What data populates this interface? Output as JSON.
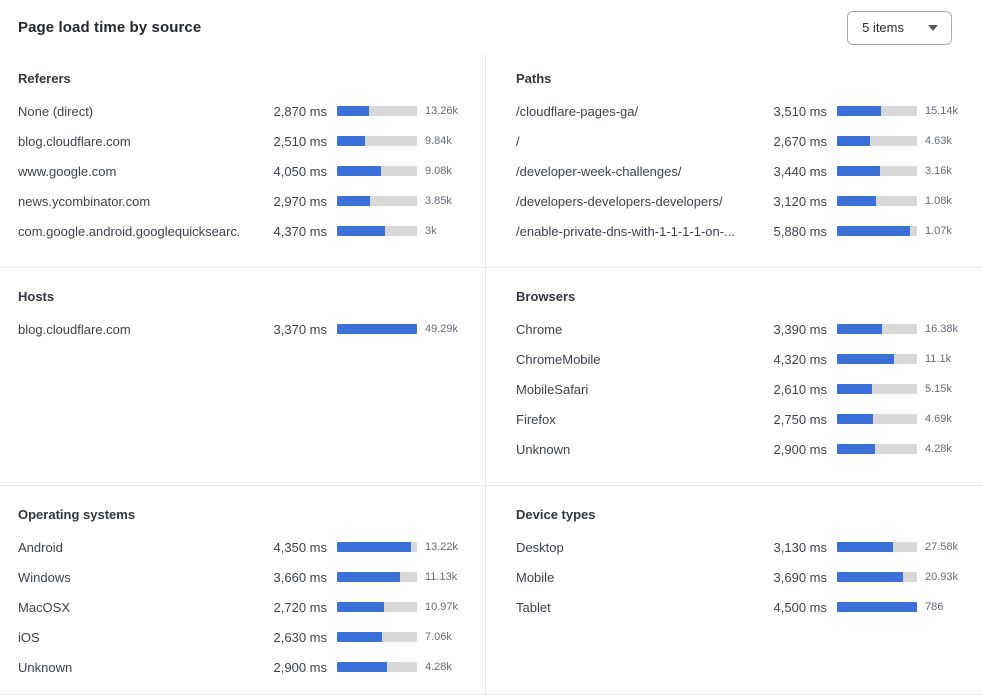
{
  "header": {
    "title": "Page load time by source",
    "items_dropdown": {
      "value": "5 items"
    }
  },
  "colors": {
    "bar_fill": "#3b70d9",
    "bar_track": "#d8d8d8",
    "divider": "#e5e6e8"
  },
  "chart_data": [
    {
      "type": "bar",
      "orientation": "horizontal",
      "title": "Referers",
      "unit": "ms",
      "scale_max_ms": 7280,
      "rows": [
        {
          "label": "None (direct)",
          "ms": 2870,
          "ms_label": "2,870 ms",
          "count": "13.26k"
        },
        {
          "label": "blog.cloudflare.com",
          "ms": 2510,
          "ms_label": "2,510 ms",
          "count": "9.84k"
        },
        {
          "label": "www.google.com",
          "ms": 4050,
          "ms_label": "4,050 ms",
          "count": "9.08k"
        },
        {
          "label": "news.ycombinator.com",
          "ms": 2970,
          "ms_label": "2,970 ms",
          "count": "3.85k"
        },
        {
          "label": "com.google.android.googlequicksearc...",
          "ms": 4370,
          "ms_label": "4,370 ms",
          "count": "3k"
        }
      ]
    },
    {
      "type": "bar",
      "orientation": "horizontal",
      "title": "Paths",
      "unit": "ms",
      "scale_max_ms": 6450,
      "rows": [
        {
          "label": "/cloudflare-pages-ga/",
          "ms": 3510,
          "ms_label": "3,510 ms",
          "count": "15.14k"
        },
        {
          "label": "/",
          "ms": 2670,
          "ms_label": "2,670 ms",
          "count": "4.63k"
        },
        {
          "label": "/developer-week-challenges/",
          "ms": 3440,
          "ms_label": "3,440 ms",
          "count": "3.16k"
        },
        {
          "label": "/developers-developers-developers/",
          "ms": 3120,
          "ms_label": "3,120 ms",
          "count": "1.08k"
        },
        {
          "label": "/enable-private-dns-with-1-1-1-1-on-...",
          "ms": 5880,
          "ms_label": "5,880 ms",
          "count": "1.07k"
        }
      ]
    },
    {
      "type": "bar",
      "orientation": "horizontal",
      "title": "Hosts",
      "unit": "ms",
      "scale_max_ms": 3370,
      "rows": [
        {
          "label": "blog.cloudflare.com",
          "ms": 3370,
          "ms_label": "3,370 ms",
          "count": "49.29k"
        }
      ]
    },
    {
      "type": "bar",
      "orientation": "horizontal",
      "title": "Browsers",
      "unit": "ms",
      "scale_max_ms": 6040,
      "rows": [
        {
          "label": "Chrome",
          "ms": 3390,
          "ms_label": "3,390 ms",
          "count": "16.38k"
        },
        {
          "label": "ChromeMobile",
          "ms": 4320,
          "ms_label": "4,320 ms",
          "count": "11.1k"
        },
        {
          "label": "MobileSafari",
          "ms": 2610,
          "ms_label": "2,610 ms",
          "count": "5.15k"
        },
        {
          "label": "Firefox",
          "ms": 2750,
          "ms_label": "2,750 ms",
          "count": "4.69k"
        },
        {
          "label": "Unknown",
          "ms": 2900,
          "ms_label": "2,900 ms",
          "count": "4.28k"
        }
      ]
    },
    {
      "type": "bar",
      "orientation": "horizontal",
      "title": "Operating systems",
      "unit": "ms",
      "scale_max_ms": 4675,
      "rows": [
        {
          "label": "Android",
          "ms": 4350,
          "ms_label": "4,350 ms",
          "count": "13.22k"
        },
        {
          "label": "Windows",
          "ms": 3660,
          "ms_label": "3,660 ms",
          "count": "11.13k"
        },
        {
          "label": "MacOSX",
          "ms": 2720,
          "ms_label": "2,720 ms",
          "count": "10.97k"
        },
        {
          "label": "iOS",
          "ms": 2630,
          "ms_label": "2,630 ms",
          "count": "7.06k"
        },
        {
          "label": "Unknown",
          "ms": 2900,
          "ms_label": "2,900 ms",
          "count": "4.28k"
        }
      ]
    },
    {
      "type": "bar",
      "orientation": "horizontal",
      "title": "Device types",
      "unit": "ms",
      "scale_max_ms": 4500,
      "rows": [
        {
          "label": "Desktop",
          "ms": 3130,
          "ms_label": "3,130 ms",
          "count": "27.58k"
        },
        {
          "label": "Mobile",
          "ms": 3690,
          "ms_label": "3,690 ms",
          "count": "20.93k"
        },
        {
          "label": "Tablet",
          "ms": 4500,
          "ms_label": "4,500 ms",
          "count": "786"
        }
      ]
    }
  ]
}
